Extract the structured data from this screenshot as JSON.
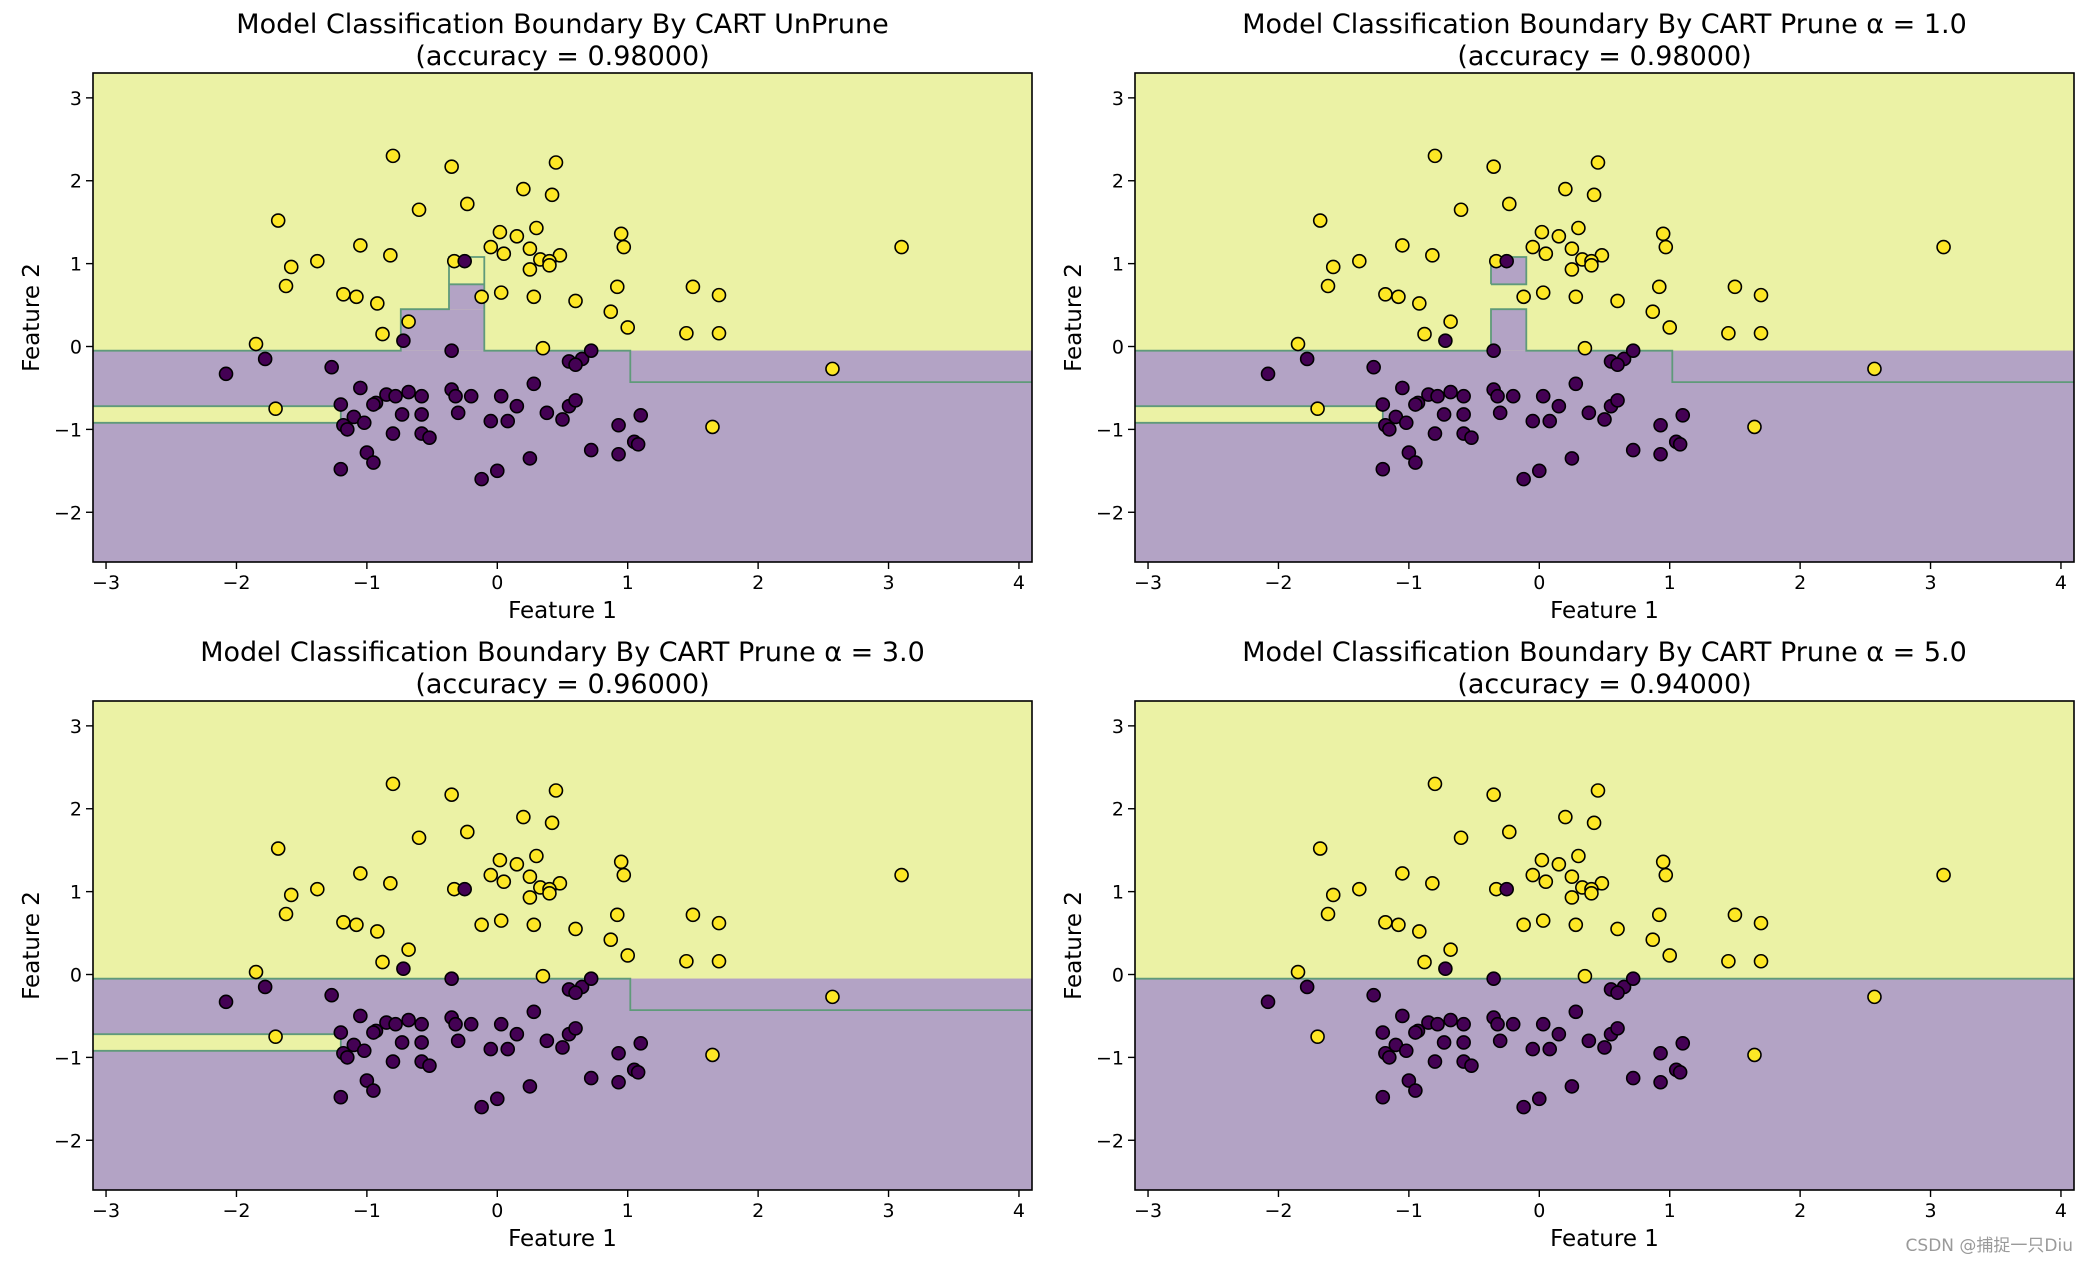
{
  "figure": {
    "watermark": "CSDN @捕捉一只Diu",
    "colors": {
      "class0_region": "#b3a3c5",
      "class1_region": "#ebf2a5",
      "class0_point": "#440154",
      "class1_point": "#fde725",
      "boundary": "#5f9a7a",
      "edge": "#000000"
    }
  },
  "chart_data": [
    {
      "type": "scatter",
      "title": "Model Classification Boundary By CART UnPrune",
      "subtitle": "(accuracy = 0.98000)",
      "xlabel": "Feature 1",
      "ylabel": "Feature 2",
      "xlim": [
        -3.1,
        4.1
      ],
      "ylim": [
        -2.6,
        3.3
      ],
      "xticks": [
        "−3",
        "−2",
        "−1",
        "0",
        "1",
        "2",
        "3",
        "4"
      ],
      "yticks": [
        "−2",
        "−1",
        "0",
        "1",
        "2",
        "3"
      ],
      "regions_class1": [
        [
          [
            -3.1,
            4.1
          ],
          [
            -0.05,
            3.3
          ]
        ],
        [
          [
            -3.1,
            -1.2
          ],
          [
            -0.92,
            -0.72
          ]
        ]
      ],
      "regions_class0": [
        [
          [
            -0.74,
            -0.1
          ],
          [
            -0.05,
            0.45
          ]
        ],
        [
          [
            -0.37,
            -0.1
          ],
          [
            0.45,
            0.75
          ]
        ],
        [
          [
            1.02,
            4.1
          ],
          [
            -0.43,
            -0.05
          ]
        ]
      ],
      "boundary_lines": [
        [
          [
            -3.1,
            -0.05
          ],
          [
            -0.74,
            -0.05
          ],
          [
            -0.74,
            0.45
          ],
          [
            -0.37,
            0.45
          ],
          [
            -0.37,
            1.08
          ],
          [
            -0.1,
            1.08
          ],
          [
            -0.1,
            -0.05
          ],
          [
            1.02,
            -0.05
          ],
          [
            1.02,
            -0.43
          ],
          [
            4.1,
            -0.43
          ]
        ],
        [
          [
            -0.37,
            0.75
          ],
          [
            -0.1,
            0.75
          ]
        ],
        [
          [
            -3.1,
            -0.72
          ],
          [
            -1.2,
            -0.72
          ],
          [
            -1.2,
            -0.92
          ],
          [
            -3.1,
            -0.92
          ]
        ]
      ]
    },
    {
      "type": "scatter",
      "title": "Model Classification Boundary By CART Prune α = 1.0",
      "subtitle": "(accuracy = 0.98000)",
      "xlabel": "Feature 1",
      "ylabel": "Feature 2",
      "xlim": [
        -3.1,
        4.1
      ],
      "ylim": [
        -2.6,
        3.3
      ],
      "xticks": [
        "−3",
        "−2",
        "−1",
        "0",
        "1",
        "2",
        "3",
        "4"
      ],
      "yticks": [
        "−2",
        "−1",
        "0",
        "1",
        "2",
        "3"
      ],
      "regions_class1": [
        [
          [
            -3.1,
            4.1
          ],
          [
            -0.05,
            3.3
          ]
        ],
        [
          [
            -3.1,
            -1.2
          ],
          [
            -0.92,
            -0.72
          ]
        ]
      ],
      "regions_class0": [
        [
          [
            -0.37,
            -0.1
          ],
          [
            -0.05,
            0.45
          ]
        ],
        [
          [
            -0.37,
            -0.1
          ],
          [
            0.75,
            1.08
          ]
        ],
        [
          [
            1.02,
            4.1
          ],
          [
            -0.43,
            -0.05
          ]
        ]
      ],
      "boundary_lines": [
        [
          [
            -3.1,
            -0.05
          ],
          [
            -0.37,
            -0.05
          ],
          [
            -0.37,
            0.45
          ],
          [
            -0.1,
            0.45
          ],
          [
            -0.1,
            -0.05
          ],
          [
            1.02,
            -0.05
          ],
          [
            1.02,
            -0.43
          ],
          [
            4.1,
            -0.43
          ]
        ],
        [
          [
            -0.37,
            0.75
          ],
          [
            -0.37,
            1.08
          ],
          [
            -0.1,
            1.08
          ],
          [
            -0.1,
            0.75
          ],
          [
            -0.37,
            0.75
          ]
        ],
        [
          [
            -3.1,
            -0.72
          ],
          [
            -1.2,
            -0.72
          ],
          [
            -1.2,
            -0.92
          ],
          [
            -3.1,
            -0.92
          ]
        ]
      ]
    },
    {
      "type": "scatter",
      "title": "Model Classification Boundary By CART Prune α = 3.0",
      "subtitle": "(accuracy = 0.96000)",
      "xlabel": "Feature 1",
      "ylabel": "Feature 2",
      "xlim": [
        -3.1,
        4.1
      ],
      "ylim": [
        -2.6,
        3.3
      ],
      "xticks": [
        "−3",
        "−2",
        "−1",
        "0",
        "1",
        "2",
        "3",
        "4"
      ],
      "yticks": [
        "−2",
        "−1",
        "0",
        "1",
        "2",
        "3"
      ],
      "regions_class1": [
        [
          [
            -3.1,
            4.1
          ],
          [
            -0.05,
            3.3
          ]
        ],
        [
          [
            -3.1,
            -1.2
          ],
          [
            -0.92,
            -0.72
          ]
        ]
      ],
      "regions_class0": [
        [
          [
            1.02,
            4.1
          ],
          [
            -0.43,
            -0.05
          ]
        ]
      ],
      "boundary_lines": [
        [
          [
            -3.1,
            -0.05
          ],
          [
            1.02,
            -0.05
          ],
          [
            1.02,
            -0.43
          ],
          [
            4.1,
            -0.43
          ]
        ],
        [
          [
            -3.1,
            -0.72
          ],
          [
            -1.2,
            -0.72
          ],
          [
            -1.2,
            -0.92
          ],
          [
            -3.1,
            -0.92
          ]
        ]
      ]
    },
    {
      "type": "scatter",
      "title": "Model Classification Boundary By CART Prune α = 5.0",
      "subtitle": "(accuracy = 0.94000)",
      "xlabel": "Feature 1",
      "ylabel": "Feature 2",
      "xlim": [
        -3.1,
        4.1
      ],
      "ylim": [
        -2.6,
        3.3
      ],
      "xticks": [
        "−3",
        "−2",
        "−1",
        "0",
        "1",
        "2",
        "3",
        "4"
      ],
      "yticks": [
        "−2",
        "−1",
        "0",
        "1",
        "2",
        "3"
      ],
      "regions_class1": [
        [
          [
            -3.1,
            4.1
          ],
          [
            -0.05,
            3.3
          ]
        ]
      ],
      "regions_class0": [],
      "boundary_lines": [
        [
          [
            -3.1,
            -0.05
          ],
          [
            4.1,
            -0.05
          ]
        ]
      ]
    }
  ],
  "points": {
    "class1": [
      [
        -0.8,
        2.3
      ],
      [
        -0.35,
        2.17
      ],
      [
        0.45,
        2.22
      ],
      [
        0.2,
        1.9
      ],
      [
        0.42,
        1.83
      ],
      [
        -0.6,
        1.65
      ],
      [
        -0.23,
        1.72
      ],
      [
        -1.68,
        1.52
      ],
      [
        0.02,
        1.38
      ],
      [
        0.3,
        1.43
      ],
      [
        0.95,
        1.36
      ],
      [
        -0.33,
        1.03
      ],
      [
        -0.05,
        1.2
      ],
      [
        0.15,
        1.33
      ],
      [
        0.25,
        1.18
      ],
      [
        0.33,
        1.05
      ],
      [
        0.48,
        1.1
      ],
      [
        -1.05,
        1.22
      ],
      [
        -0.82,
        1.1
      ],
      [
        -1.58,
        0.96
      ],
      [
        -1.38,
        1.03
      ],
      [
        -1.62,
        0.73
      ],
      [
        -1.18,
        0.63
      ],
      [
        -1.08,
        0.6
      ],
      [
        0.05,
        1.12
      ],
      [
        0.4,
        1.03
      ],
      [
        0.25,
        0.93
      ],
      [
        0.4,
        0.98
      ],
      [
        0.97,
        1.2
      ],
      [
        -0.92,
        0.52
      ],
      [
        -0.12,
        0.6
      ],
      [
        0.03,
        0.65
      ],
      [
        0.28,
        0.6
      ],
      [
        0.6,
        0.55
      ],
      [
        0.92,
        0.72
      ],
      [
        1.5,
        0.72
      ],
      [
        1.7,
        0.62
      ],
      [
        -0.88,
        0.15
      ],
      [
        -0.68,
        0.3
      ],
      [
        0.87,
        0.42
      ],
      [
        1.0,
        0.23
      ],
      [
        1.45,
        0.16
      ],
      [
        1.7,
        0.16
      ],
      [
        -1.85,
        0.03
      ],
      [
        0.35,
        -0.02
      ],
      [
        2.57,
        -0.27
      ],
      [
        3.1,
        1.2
      ],
      [
        -1.7,
        -0.75
      ],
      [
        1.65,
        -0.97
      ]
    ],
    "class0": [
      [
        -0.25,
        1.03
      ],
      [
        -2.08,
        -0.33
      ],
      [
        -1.78,
        -0.15
      ],
      [
        -1.27,
        -0.25
      ],
      [
        -0.72,
        0.07
      ],
      [
        -0.35,
        -0.05
      ],
      [
        0.55,
        -0.18
      ],
      [
        0.65,
        -0.15
      ],
      [
        0.72,
        -0.05
      ],
      [
        0.6,
        -0.22
      ],
      [
        -1.05,
        -0.5
      ],
      [
        -0.93,
        -0.68
      ],
      [
        -0.85,
        -0.58
      ],
      [
        -0.78,
        -0.6
      ],
      [
        -0.68,
        -0.55
      ],
      [
        -0.58,
        -0.6
      ],
      [
        -0.35,
        -0.52
      ],
      [
        -0.2,
        -0.6
      ],
      [
        0.03,
        -0.6
      ],
      [
        0.28,
        -0.45
      ],
      [
        -1.2,
        -0.7
      ],
      [
        -1.1,
        -0.85
      ],
      [
        -0.95,
        -0.7
      ],
      [
        -0.73,
        -0.82
      ],
      [
        -0.58,
        -0.82
      ],
      [
        -0.32,
        -0.6
      ],
      [
        -0.3,
        -0.8
      ],
      [
        0.15,
        -0.72
      ],
      [
        0.38,
        -0.8
      ],
      [
        0.55,
        -0.72
      ],
      [
        0.6,
        -0.65
      ],
      [
        1.1,
        -0.83
      ],
      [
        -1.18,
        -0.95
      ],
      [
        -1.15,
        -1.0
      ],
      [
        -1.02,
        -0.92
      ],
      [
        -0.8,
        -1.05
      ],
      [
        -0.58,
        -1.05
      ],
      [
        -0.52,
        -1.1
      ],
      [
        -0.05,
        -0.9
      ],
      [
        0.08,
        -0.9
      ],
      [
        0.5,
        -0.88
      ],
      [
        0.93,
        -0.95
      ],
      [
        1.05,
        -1.15
      ],
      [
        1.08,
        -1.18
      ],
      [
        -1.2,
        -1.48
      ],
      [
        -1.0,
        -1.28
      ],
      [
        -0.95,
        -1.4
      ],
      [
        0.25,
        -1.35
      ],
      [
        0.72,
        -1.25
      ],
      [
        0.93,
        -1.3
      ],
      [
        -0.12,
        -1.6
      ],
      [
        0.0,
        -1.5
      ]
    ]
  }
}
